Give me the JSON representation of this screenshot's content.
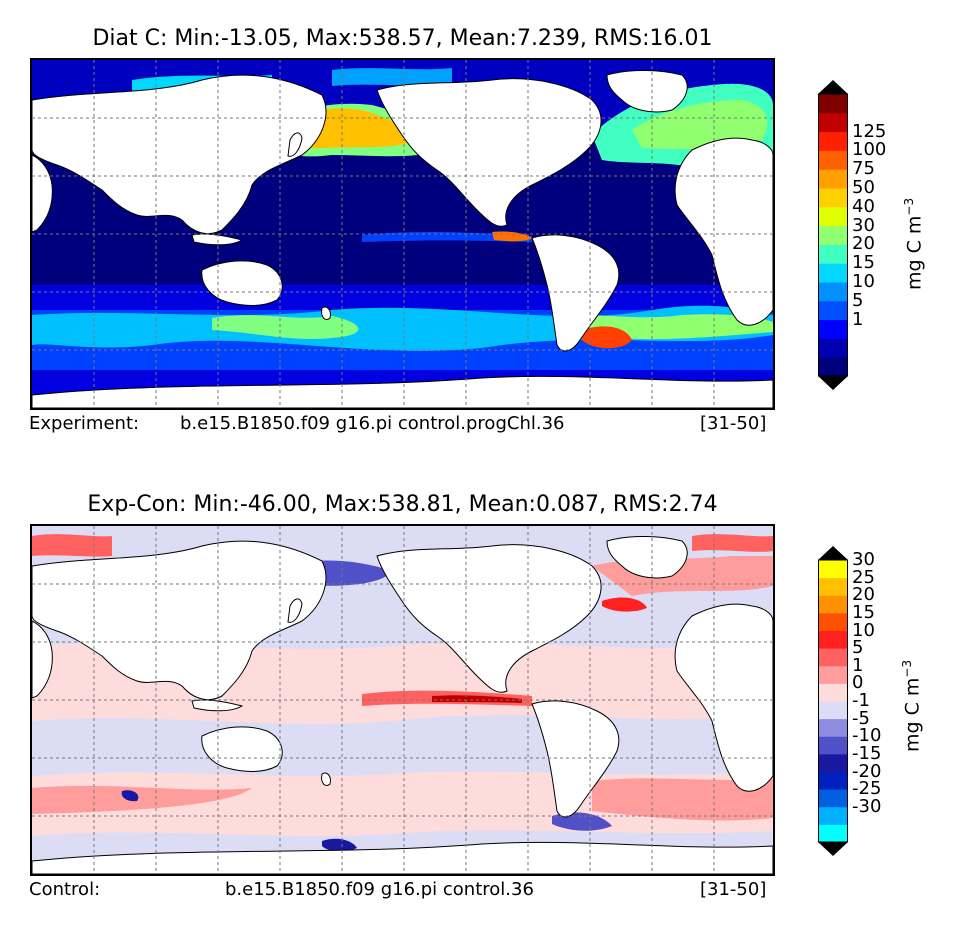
{
  "panels": [
    {
      "title": "Diat C: Min:-13.05, Max:538.57, Mean:7.239, RMS:16.01",
      "footer_left": "Experiment:",
      "footer_center": "b.e15.B1850.f09 g16.pi control.progChl.36",
      "footer_right": "[31-50]",
      "colorbar": {
        "unit_main": "mg C m",
        "unit_exp": "−3",
        "ticks": [
          "1",
          "5",
          "10",
          "15",
          "20",
          "30",
          "40",
          "50",
          "75",
          "100",
          "125"
        ],
        "colors": [
          "#00007f",
          "#0000b0",
          "#0000ff",
          "#0050ff",
          "#0090ff",
          "#00d8ff",
          "#40ffc0",
          "#90ff70",
          "#e0ff00",
          "#ffd000",
          "#ffa000",
          "#ff6000",
          "#ff2000",
          "#c00000",
          "#800000"
        ],
        "under_color": "#000000",
        "over_color": "#000000"
      }
    },
    {
      "title": "Exp-Con: Min:-46.00, Max:538.81, Mean:0.087, RMS:2.74",
      "footer_left": "Control:",
      "footer_center": "b.e15.B1850.f09 g16.pi control.36",
      "footer_right": "[31-50]",
      "colorbar": {
        "unit_main": "mg C m",
        "unit_exp": "−3",
        "ticks": [
          "-30",
          "-25",
          "-20",
          "-15",
          "-10",
          "-5",
          "-1",
          "0",
          "1",
          "5",
          "10",
          "15",
          "20",
          "25",
          "30"
        ],
        "colors": [
          "#00ffff",
          "#00b0ff",
          "#0060e0",
          "#0020c0",
          "#1818a0",
          "#5050c8",
          "#8c8ce0",
          "#dcdcf4",
          "#ffdcdc",
          "#ff9c9c",
          "#ff6060",
          "#ff2020",
          "#ff5000",
          "#ff9000",
          "#ffc000",
          "#ffff00"
        ],
        "under_color": "#000000",
        "over_color": "#000000"
      }
    }
  ]
}
